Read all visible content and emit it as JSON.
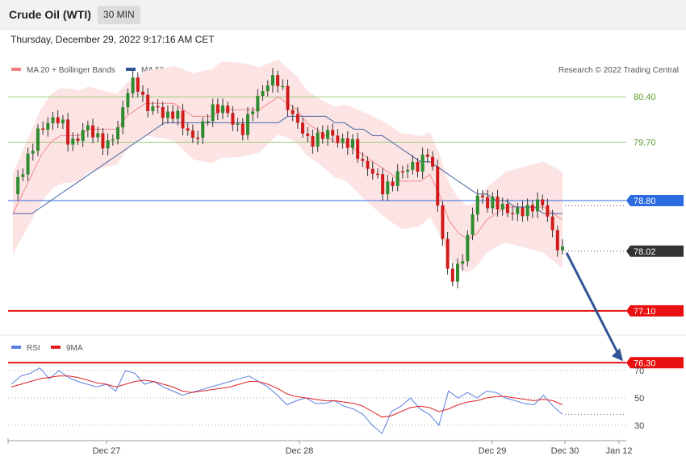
{
  "header": {
    "title": "Crude Oil (WTI)",
    "timeframe": "30 MIN",
    "timestamp": "Thursday, December 29, 2022 9:17:16 AM CET"
  },
  "chart_data": [
    {
      "type": "candlestick",
      "title": "Crude Oil (WTI)",
      "legend": [
        {
          "name": "MA 20 + Bollinger Bands",
          "color": "#f08080"
        },
        {
          "name": "MA 50",
          "color": "#2f5597"
        }
      ],
      "credit": "Research © 2022 Trading Central",
      "ylim": [
        75.9,
        81.2
      ],
      "x_ticks": [
        "Dec 27",
        "Dec 28",
        "Dec 29",
        "Dec 30",
        "Jan 12"
      ],
      "levels": [
        {
          "value": 80.4,
          "label": "80.40",
          "kind": "resistance"
        },
        {
          "value": 79.7,
          "label": "79.70",
          "kind": "resistance"
        },
        {
          "value": 78.8,
          "label": "78.80",
          "kind": "pivot"
        },
        {
          "value": 78.02,
          "label": "78.02",
          "kind": "last"
        },
        {
          "value": 77.1,
          "label": "77.10",
          "kind": "support"
        },
        {
          "value": 76.3,
          "label": "76.30",
          "kind": "support"
        }
      ],
      "projection": {
        "from": 78.02,
        "to": 76.3
      },
      "close_path": [
        78.9,
        79.3,
        79.6,
        79.9,
        80.1,
        80.0,
        79.7,
        79.8,
        79.9,
        79.8,
        79.6,
        79.9,
        80.5,
        80.6,
        80.3,
        80.2,
        80.1,
        80.2,
        79.9,
        79.8,
        79.9,
        80.2,
        80.3,
        80.0,
        79.9,
        80.1,
        80.4,
        80.7,
        80.6,
        80.3,
        80.0,
        79.7,
        79.8,
        79.8,
        79.8,
        79.7,
        79.6,
        79.4,
        79.2,
        79.0,
        79.1,
        79.2,
        79.4,
        79.3,
        79.6,
        78.6,
        77.5,
        77.8,
        78.2,
        78.9,
        78.8,
        78.7,
        78.7,
        78.6,
        78.6,
        78.8,
        78.7,
        78.3,
        78.0
      ],
      "series": [
        {
          "name": "MA 20 + Bollinger Bands",
          "values": [
            78.6,
            78.9,
            79.2,
            79.5,
            79.7,
            79.8,
            79.8,
            79.8,
            79.9,
            79.9,
            79.9,
            79.9,
            80.1,
            80.2,
            80.3,
            80.3,
            80.3,
            80.3,
            80.2,
            80.1,
            80.1,
            80.1,
            80.2,
            80.2,
            80.2,
            80.2,
            80.2,
            80.3,
            80.4,
            80.3,
            80.2,
            80.0,
            79.9,
            79.8,
            79.7,
            79.7,
            79.6,
            79.5,
            79.4,
            79.3,
            79.2,
            79.1,
            79.1,
            79.1,
            79.2,
            78.9,
            78.5,
            78.3,
            78.2,
            78.3,
            78.5,
            78.6,
            78.7,
            78.7,
            78.7,
            78.7,
            78.7,
            78.6,
            78.5
          ]
        },
        {
          "name": "MA 50",
          "values": [
            78.6,
            78.6,
            78.6,
            78.7,
            78.8,
            78.9,
            79.0,
            79.1,
            79.2,
            79.3,
            79.4,
            79.5,
            79.6,
            79.7,
            79.8,
            79.9,
            80.0,
            80.0,
            80.0,
            80.0,
            80.0,
            80.0,
            80.0,
            80.0,
            80.0,
            80.0,
            80.0,
            80.0,
            80.0,
            80.1,
            80.1,
            80.1,
            80.1,
            80.1,
            80.0,
            80.0,
            79.9,
            79.9,
            79.8,
            79.8,
            79.7,
            79.6,
            79.5,
            79.4,
            79.4,
            79.3,
            79.2,
            79.1,
            79.0,
            78.9,
            78.9,
            78.8,
            78.8,
            78.7,
            78.7,
            78.7,
            78.6,
            78.6,
            78.6
          ]
        }
      ]
    },
    {
      "type": "line",
      "legend": [
        {
          "name": "RSI",
          "color": "#5b7fe0"
        },
        {
          "name": "9MA",
          "color": "#e02020"
        }
      ],
      "y_ticks": [
        {
          "value": 70,
          "label": "70"
        },
        {
          "value": 50,
          "label": "50"
        },
        {
          "value": 30,
          "label": "30"
        }
      ],
      "ylim": [
        20,
        80
      ],
      "series": [
        {
          "name": "RSI",
          "values": [
            60,
            66,
            68,
            72,
            64,
            70,
            65,
            62,
            60,
            58,
            60,
            55,
            70,
            68,
            60,
            62,
            58,
            55,
            52,
            54,
            56,
            58,
            60,
            62,
            64,
            66,
            62,
            58,
            52,
            45,
            48,
            50,
            46,
            46,
            48,
            44,
            42,
            38,
            30,
            24,
            40,
            44,
            50,
            42,
            38,
            30,
            55,
            50,
            54,
            50,
            55,
            54,
            50,
            48,
            46,
            45,
            52,
            44,
            38
          ]
        },
        {
          "name": "9MA",
          "values": [
            58,
            60,
            62,
            64,
            65,
            66,
            66,
            65,
            63,
            61,
            60,
            58,
            60,
            62,
            63,
            62,
            60,
            58,
            55,
            54,
            55,
            56,
            57,
            58,
            60,
            62,
            62,
            60,
            57,
            53,
            51,
            50,
            49,
            48,
            48,
            47,
            46,
            44,
            40,
            36,
            37,
            40,
            43,
            44,
            43,
            40,
            42,
            45,
            47,
            48,
            50,
            51,
            51,
            50,
            49,
            48,
            49,
            48,
            45
          ]
        }
      ]
    }
  ]
}
